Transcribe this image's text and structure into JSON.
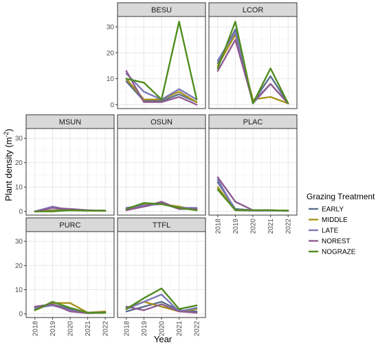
{
  "chart_data": {
    "type": "line",
    "xlabel": "Year",
    "ylabel": "Plant density (m",
    "ylabel_sup": "-2",
    "ylabel_close": ")",
    "ylim": [
      -1.5,
      34
    ],
    "x": [
      "2018",
      "2019",
      "2020",
      "2021",
      "2022"
    ],
    "y_ticks": [
      0,
      10,
      20,
      30
    ],
    "legend": {
      "title": "Grazing Treatment",
      "placement": "right",
      "items": [
        {
          "name": "EARLY",
          "color": "#5a6f8a"
        },
        {
          "name": "MIDDLE",
          "color": "#a8911a"
        },
        {
          "name": "LATE",
          "color": "#7b79b7"
        },
        {
          "name": "NOREST",
          "color": "#8e5b92"
        },
        {
          "name": "NOGRAZE",
          "color": "#4f8c1e"
        }
      ]
    },
    "panels": [
      {
        "name": "BESU",
        "series": [
          {
            "name": "EARLY",
            "values": [
              9,
              1.5,
              1.5,
              4,
              1
            ]
          },
          {
            "name": "MIDDLE",
            "values": [
              10,
              2,
              2,
              5,
              1
            ]
          },
          {
            "name": "LATE",
            "values": [
              12,
              5,
              2,
              6,
              2
            ]
          },
          {
            "name": "NOREST",
            "values": [
              13,
              1,
              1,
              3,
              0
            ]
          },
          {
            "name": "NOGRAZE",
            "values": [
              10,
              8.5,
              2,
              32,
              2
            ]
          }
        ]
      },
      {
        "name": "LCOR",
        "series": [
          {
            "name": "EARLY",
            "values": [
              16,
              29,
              1,
              11,
              0.5
            ]
          },
          {
            "name": "MIDDLE",
            "values": [
              15,
              27,
              2,
              3,
              0.5
            ]
          },
          {
            "name": "LATE",
            "values": [
              17,
              28,
              0.5,
              8,
              0.5
            ]
          },
          {
            "name": "NOREST",
            "values": [
              13,
              25,
              1,
              8,
              0.5
            ]
          },
          {
            "name": "NOGRAZE",
            "values": [
              14,
              32,
              0.5,
              14,
              0.5
            ]
          }
        ]
      },
      {
        "name": "MSUN",
        "series": [
          {
            "name": "EARLY",
            "values": [
              0,
              0.5,
              1,
              0.5,
              0.3
            ]
          },
          {
            "name": "MIDDLE",
            "values": [
              0,
              0.3,
              0.5,
              0.3,
              0.3
            ]
          },
          {
            "name": "LATE",
            "values": [
              0,
              2,
              0.5,
              0.5,
              0.3
            ]
          },
          {
            "name": "NOREST",
            "values": [
              0,
              1.5,
              1,
              0.5,
              0.3
            ]
          },
          {
            "name": "NOGRAZE",
            "values": [
              0,
              0,
              0.5,
              0.3,
              0.3
            ]
          }
        ]
      },
      {
        "name": "OSUN",
        "series": [
          {
            "name": "EARLY",
            "values": [
              1,
              2,
              3.5,
              1,
              1
            ]
          },
          {
            "name": "MIDDLE",
            "values": [
              0.5,
              3,
              3,
              2,
              0.5
            ]
          },
          {
            "name": "LATE",
            "values": [
              1.5,
              2.5,
              3,
              1.5,
              1.5
            ]
          },
          {
            "name": "NOREST",
            "values": [
              0.5,
              2,
              4,
              1,
              1
            ]
          },
          {
            "name": "NOGRAZE",
            "values": [
              1,
              3.5,
              3,
              1.5,
              0.5
            ]
          }
        ]
      },
      {
        "name": "PLAC",
        "series": [
          {
            "name": "EARLY",
            "values": [
              12,
              1,
              0.5,
              0.5,
              0.3
            ]
          },
          {
            "name": "MIDDLE",
            "values": [
              10,
              0.5,
              0.5,
              0.5,
              0.3
            ]
          },
          {
            "name": "LATE",
            "values": [
              13,
              0.5,
              0.3,
              0.3,
              0.3
            ]
          },
          {
            "name": "NOREST",
            "values": [
              14,
              4,
              0.5,
              0.5,
              0.3
            ]
          },
          {
            "name": "NOGRAZE",
            "values": [
              9,
              0.5,
              0.5,
              0.5,
              0.3
            ]
          }
        ]
      },
      {
        "name": "PURC",
        "series": [
          {
            "name": "EARLY",
            "values": [
              2,
              4,
              2,
              0.5,
              0.5
            ]
          },
          {
            "name": "MIDDLE",
            "values": [
              1.5,
              4.5,
              4.5,
              0.5,
              1
            ]
          },
          {
            "name": "LATE",
            "values": [
              2.5,
              3.5,
              1.5,
              0.5,
              0.5
            ]
          },
          {
            "name": "NOREST",
            "values": [
              3,
              4,
              1,
              0.3,
              0.5
            ]
          },
          {
            "name": "NOGRAZE",
            "values": [
              1.5,
              5,
              2.5,
              0.5,
              0.5
            ]
          }
        ]
      },
      {
        "name": "TTFL",
        "series": [
          {
            "name": "EARLY",
            "values": [
              1,
              3,
              5,
              1.5,
              1
            ]
          },
          {
            "name": "MIDDLE",
            "values": [
              2.5,
              5,
              3,
              1,
              2
            ]
          },
          {
            "name": "LATE",
            "values": [
              2,
              5,
              8,
              1,
              2.5
            ]
          },
          {
            "name": "NOREST",
            "values": [
              3,
              1.5,
              4,
              1,
              0.5
            ]
          },
          {
            "name": "NOGRAZE",
            "values": [
              2,
              6.5,
              10.5,
              2,
              3.5
            ]
          }
        ]
      }
    ]
  }
}
